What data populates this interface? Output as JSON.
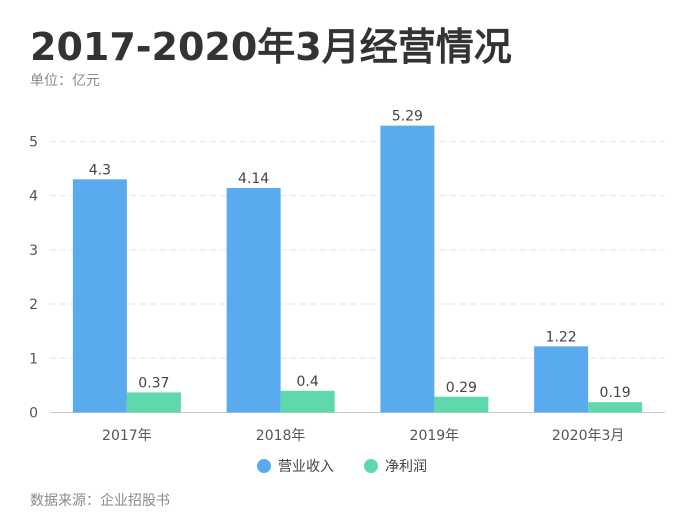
{
  "header": {
    "title": "2017-2020年3月经营情况",
    "unit": "单位：亿元"
  },
  "footer": {
    "source": "数据来源：企业招股书"
  },
  "colors": {
    "revenue": "#5aabed",
    "profit": "#5fd8ab",
    "grid": "#e6e6e6",
    "axis": "#cccccc"
  },
  "chart_data": {
    "type": "bar",
    "categories": [
      "2017年",
      "2018年",
      "2019年",
      "2020年3月"
    ],
    "series": [
      {
        "name": "营业收入",
        "values": [
          4.3,
          4.14,
          5.29,
          1.22
        ],
        "labels": [
          "4.3",
          "4.14",
          "5.29",
          "1.22"
        ]
      },
      {
        "name": "净利润",
        "values": [
          0.37,
          0.4,
          0.29,
          0.19
        ],
        "labels": [
          "0.37",
          "0.4",
          "0.29",
          "0.19"
        ]
      }
    ],
    "y_ticks": [
      "0",
      "1",
      "2",
      "3",
      "4",
      "5"
    ],
    "ylim": [
      0,
      5.8
    ],
    "grid": true,
    "legend_position": "bottom-center"
  }
}
